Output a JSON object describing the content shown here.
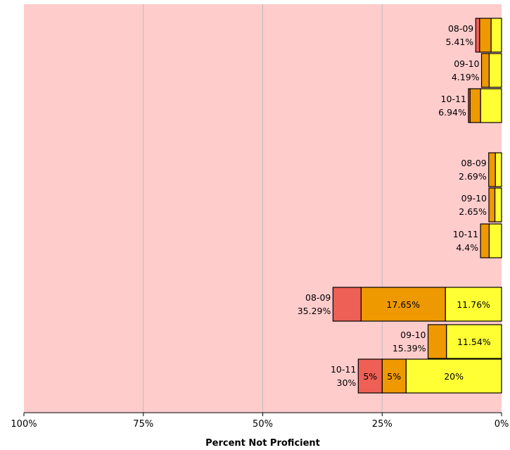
{
  "chart_data": {
    "type": "bar",
    "orientation": "horizontal-stacked",
    "x_direction": "reversed",
    "xlabel": "Percent Not Proficient",
    "xlim": [
      0,
      100
    ],
    "xticks": [
      "100%",
      "75%",
      "50%",
      "25%",
      "0%"
    ],
    "grid": true,
    "colors": {
      "background": "#ffcccc",
      "gridline": "#bbbbbb",
      "level_1": "#ffff33",
      "level_2": "#ee9900",
      "level_3": "#ee5f55",
      "outline": "#000000"
    },
    "groups": [
      {
        "bars": [
          {
            "year": "08-09",
            "total": "5.41%",
            "values": [
              2.2,
              2.4,
              0.81
            ],
            "segment_labels": [
              "",
              "",
              ""
            ]
          },
          {
            "year": "09-10",
            "total": "4.19%",
            "values": [
              2.6,
              1.59,
              0
            ],
            "segment_labels": [
              "",
              "",
              ""
            ]
          },
          {
            "year": "10-11",
            "total": "6.94%",
            "values": [
              4.4,
              2.2,
              0.34
            ],
            "segment_labels": [
              "",
              "",
              ""
            ]
          }
        ]
      },
      {
        "bars": [
          {
            "year": "08-09",
            "total": "2.69%",
            "values": [
              1.3,
              1.39,
              0
            ],
            "segment_labels": [
              "",
              "",
              ""
            ]
          },
          {
            "year": "09-10",
            "total": "2.65%",
            "values": [
              1.4,
              1.25,
              0
            ],
            "segment_labels": [
              "",
              "",
              ""
            ]
          },
          {
            "year": "10-11",
            "total": "4.4%",
            "values": [
              2.6,
              1.8,
              0
            ],
            "segment_labels": [
              "",
              "",
              ""
            ]
          }
        ]
      },
      {
        "bars": [
          {
            "year": "08-09",
            "total": "35.29%",
            "values": [
              11.76,
              17.65,
              5.88
            ],
            "segment_labels": [
              "11.76%",
              "17.65%",
              ""
            ]
          },
          {
            "year": "09-10",
            "total": "15.39%",
            "values": [
              11.54,
              3.85,
              0
            ],
            "segment_labels": [
              "11.54%",
              "",
              ""
            ]
          },
          {
            "year": "10-11",
            "total": "30%",
            "values": [
              20,
              5,
              5
            ],
            "segment_labels": [
              "20%",
              "5%",
              "5%"
            ]
          }
        ]
      }
    ]
  }
}
